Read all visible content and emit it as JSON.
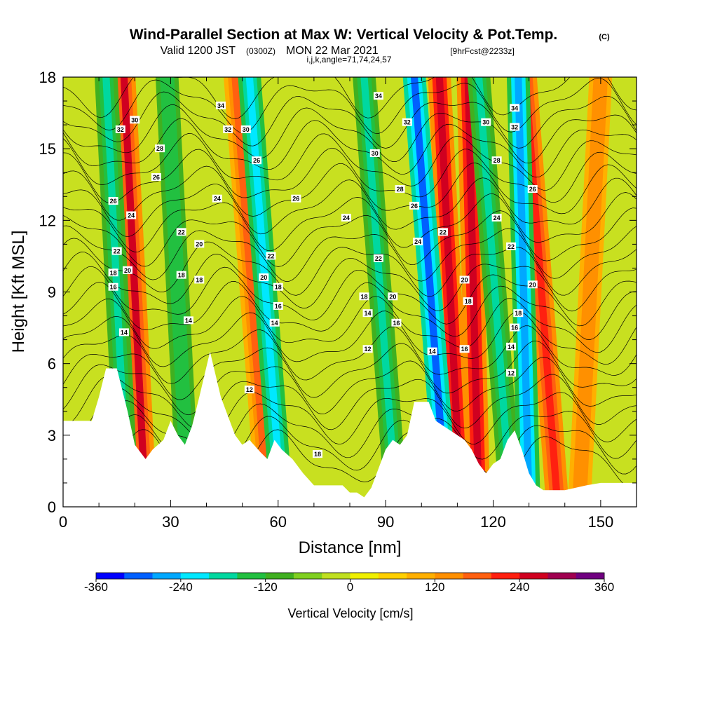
{
  "title": {
    "main": "Wind-Parallel Section at Max W: Vertical Velocity & Pot.Temp.",
    "copyright": "(C)",
    "valid_prefix": "Valid 1200 JST",
    "valid_zulu": "(0300Z)",
    "valid_date": "MON 22 Mar 2021",
    "forecast": "[9hrFcst@2233z]",
    "params": "i,j,k,angle=71,74,24,57"
  },
  "chart_data": {
    "type": "heatmap",
    "xlabel": "Distance [nm]",
    "ylabel": "Height [Kft MSL]",
    "xlim": [
      0,
      160
    ],
    "ylim": [
      0,
      18
    ],
    "x_ticks": [
      "0",
      "30",
      "60",
      "90",
      "120",
      "150"
    ],
    "y_ticks": [
      "0",
      "3",
      "6",
      "9",
      "12",
      "15",
      "18"
    ],
    "colorbar": {
      "title": "Vertical Velocity [cm/s]",
      "range": [
        -360,
        360
      ],
      "tick_labels": [
        "-360",
        "-240",
        "-120",
        "0",
        "120",
        "240",
        "360"
      ],
      "colors": [
        "#0000ff",
        "#0060ff",
        "#00a8ff",
        "#00e8ff",
        "#00d8a0",
        "#22c040",
        "#40b020",
        "#80d020",
        "#c0e020",
        "#f0f000",
        "#ffd000",
        "#ffb000",
        "#ff9000",
        "#ff6010",
        "#ff2010",
        "#d00020",
        "#a00050",
        "#700080"
      ]
    },
    "updraft_bands": [
      {
        "x": 19,
        "w": 240,
        "slant": -2
      },
      {
        "x": 51,
        "w": 180,
        "slant": -3
      },
      {
        "x": 107,
        "w": 270,
        "slant": -2
      },
      {
        "x": 114,
        "w": 250,
        "slant": -1
      },
      {
        "x": 132,
        "w": 230,
        "slant": -3
      },
      {
        "x": 148,
        "w": 150,
        "slant": 2
      }
    ],
    "downdraft_bands": [
      {
        "x": 14,
        "w": -170,
        "slant": -2
      },
      {
        "x": 31,
        "w": -160,
        "slant": -2
      },
      {
        "x": 55,
        "w": -240,
        "slant": -3
      },
      {
        "x": 87,
        "w": -200,
        "slant": -3
      },
      {
        "x": 101,
        "w": -300,
        "slant": -3
      },
      {
        "x": 119,
        "w": -200,
        "slant": -3
      },
      {
        "x": 128,
        "w": -260,
        "slant": -1
      }
    ],
    "terrain_kft": [
      [
        0,
        3.6
      ],
      [
        8,
        3.6
      ],
      [
        10,
        4.6
      ],
      [
        12,
        5.8
      ],
      [
        15,
        5.8
      ],
      [
        18,
        4.0
      ],
      [
        20,
        2.6
      ],
      [
        23,
        2.0
      ],
      [
        25,
        2.4
      ],
      [
        28,
        2.8
      ],
      [
        30,
        3.6
      ],
      [
        32,
        3.0
      ],
      [
        34,
        2.6
      ],
      [
        36,
        3.4
      ],
      [
        38,
        4.6
      ],
      [
        41,
        6.5
      ],
      [
        44,
        4.6
      ],
      [
        46,
        3.8
      ],
      [
        48,
        3.0
      ],
      [
        50,
        2.6
      ],
      [
        52,
        2.8
      ],
      [
        55,
        2.3
      ],
      [
        57,
        2.0
      ],
      [
        59,
        2.8
      ],
      [
        61,
        2.4
      ],
      [
        64,
        2.0
      ],
      [
        67,
        1.4
      ],
      [
        70,
        0.9
      ],
      [
        75,
        0.9
      ],
      [
        78,
        0.9
      ],
      [
        80,
        0.6
      ],
      [
        82,
        0.6
      ],
      [
        84,
        0.4
      ],
      [
        86,
        0.8
      ],
      [
        88,
        1.6
      ],
      [
        90,
        2.4
      ],
      [
        92,
        2.8
      ],
      [
        94,
        2.6
      ],
      [
        96,
        3.0
      ],
      [
        98,
        4.4
      ],
      [
        102,
        4.4
      ],
      [
        104,
        3.6
      ],
      [
        106,
        3.4
      ],
      [
        108,
        3.2
      ],
      [
        110,
        3.0
      ],
      [
        112,
        2.8
      ],
      [
        114,
        2.4
      ],
      [
        116,
        1.8
      ],
      [
        118,
        1.4
      ],
      [
        120,
        1.8
      ],
      [
        122,
        2.0
      ],
      [
        124,
        2.8
      ],
      [
        126,
        3.2
      ],
      [
        128,
        2.4
      ],
      [
        130,
        1.4
      ],
      [
        132,
        0.9
      ],
      [
        134,
        0.7
      ],
      [
        140,
        0.7
      ],
      [
        146,
        0.9
      ],
      [
        150,
        1.0
      ],
      [
        160,
        1.0
      ]
    ],
    "theta_labels": [
      {
        "text": "32",
        "x": 16,
        "y": 15.8
      },
      {
        "text": "30",
        "x": 20,
        "y": 16.2
      },
      {
        "text": "28",
        "x": 27,
        "y": 15.0
      },
      {
        "text": "26",
        "x": 26,
        "y": 13.8
      },
      {
        "text": "26",
        "x": 14,
        "y": 12.8
      },
      {
        "text": "24",
        "x": 19,
        "y": 12.2
      },
      {
        "text": "22",
        "x": 15,
        "y": 10.7
      },
      {
        "text": "18",
        "x": 14,
        "y": 9.8
      },
      {
        "text": "20",
        "x": 18,
        "y": 9.9
      },
      {
        "text": "16",
        "x": 14,
        "y": 9.2
      },
      {
        "text": "14",
        "x": 17,
        "y": 7.3
      },
      {
        "text": "22",
        "x": 33,
        "y": 11.5
      },
      {
        "text": "20",
        "x": 38,
        "y": 11.0
      },
      {
        "text": "18",
        "x": 33,
        "y": 9.7
      },
      {
        "text": "18",
        "x": 38,
        "y": 9.5
      },
      {
        "text": "14",
        "x": 35,
        "y": 7.8
      },
      {
        "text": "34",
        "x": 44,
        "y": 16.8
      },
      {
        "text": "32",
        "x": 46,
        "y": 15.8
      },
      {
        "text": "30",
        "x": 51,
        "y": 15.8
      },
      {
        "text": "24",
        "x": 43,
        "y": 12.9
      },
      {
        "text": "26",
        "x": 54,
        "y": 14.5
      },
      {
        "text": "22",
        "x": 58,
        "y": 10.5
      },
      {
        "text": "20",
        "x": 56,
        "y": 9.6
      },
      {
        "text": "18",
        "x": 60,
        "y": 9.2
      },
      {
        "text": "16",
        "x": 60,
        "y": 8.4
      },
      {
        "text": "14",
        "x": 59,
        "y": 7.7
      },
      {
        "text": "12",
        "x": 52,
        "y": 4.9
      },
      {
        "text": "26",
        "x": 65,
        "y": 12.9
      },
      {
        "text": "24",
        "x": 79,
        "y": 12.1
      },
      {
        "text": "18",
        "x": 71,
        "y": 2.2
      },
      {
        "text": "34",
        "x": 88,
        "y": 17.2
      },
      {
        "text": "32",
        "x": 96,
        "y": 16.1
      },
      {
        "text": "30",
        "x": 87,
        "y": 14.8
      },
      {
        "text": "28",
        "x": 94,
        "y": 13.3
      },
      {
        "text": "26",
        "x": 98,
        "y": 12.6
      },
      {
        "text": "24",
        "x": 99,
        "y": 11.1
      },
      {
        "text": "22",
        "x": 88,
        "y": 10.4
      },
      {
        "text": "20",
        "x": 92,
        "y": 8.8
      },
      {
        "text": "18",
        "x": 84,
        "y": 8.8
      },
      {
        "text": "16",
        "x": 93,
        "y": 7.7
      },
      {
        "text": "14",
        "x": 85,
        "y": 8.1
      },
      {
        "text": "12",
        "x": 85,
        "y": 6.6
      },
      {
        "text": "22",
        "x": 106,
        "y": 11.5
      },
      {
        "text": "20",
        "x": 112,
        "y": 9.5
      },
      {
        "text": "18",
        "x": 113,
        "y": 8.6
      },
      {
        "text": "16",
        "x": 112,
        "y": 6.6
      },
      {
        "text": "14",
        "x": 103,
        "y": 6.5
      },
      {
        "text": "34",
        "x": 126,
        "y": 16.7
      },
      {
        "text": "32",
        "x": 126,
        "y": 15.9
      },
      {
        "text": "30",
        "x": 118,
        "y": 16.1
      },
      {
        "text": "28",
        "x": 121,
        "y": 14.5
      },
      {
        "text": "26",
        "x": 131,
        "y": 13.3
      },
      {
        "text": "24",
        "x": 121,
        "y": 12.1
      },
      {
        "text": "22",
        "x": 125,
        "y": 10.9
      },
      {
        "text": "20",
        "x": 131,
        "y": 9.3
      },
      {
        "text": "18",
        "x": 127,
        "y": 8.1
      },
      {
        "text": "16",
        "x": 126,
        "y": 7.5
      },
      {
        "text": "14",
        "x": 125,
        "y": 6.7
      },
      {
        "text": "12",
        "x": 125,
        "y": 5.6
      }
    ]
  }
}
